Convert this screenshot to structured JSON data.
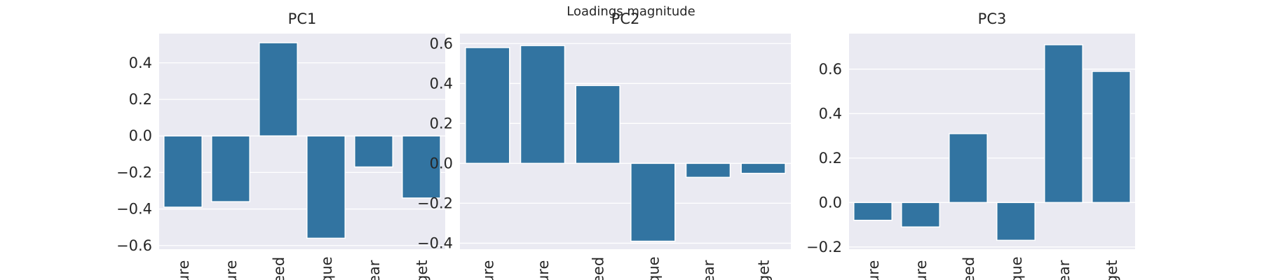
{
  "figure": {
    "suptitle": "Loadings magnitude"
  },
  "chart_data": [
    {
      "type": "bar",
      "title": "PC1",
      "categories": [
        "ure",
        "ure",
        "eed",
        "que",
        "ear",
        "get"
      ],
      "values": [
        -0.39,
        -0.36,
        0.51,
        -0.56,
        -0.17,
        -0.34
      ],
      "ylim": [
        -0.62,
        0.56
      ],
      "yticks": [
        -0.6,
        -0.4,
        -0.2,
        0.0,
        0.2,
        0.4
      ],
      "ytick_labels": [
        "−0.6",
        "−0.4",
        "−0.2",
        "0.0",
        "0.2",
        "0.4"
      ],
      "grid": true,
      "bar_color": "#3274a1"
    },
    {
      "type": "bar",
      "title": "PC2",
      "categories": [
        "ure",
        "ure",
        "eed",
        "que",
        "ear",
        "get"
      ],
      "values": [
        0.58,
        0.59,
        0.39,
        -0.39,
        -0.07,
        -0.05
      ],
      "ylim": [
        -0.43,
        0.65
      ],
      "yticks": [
        -0.4,
        -0.2,
        0.0,
        0.2,
        0.4,
        0.6
      ],
      "ytick_labels": [
        "−0.4",
        "−0.2",
        "0.0",
        "0.2",
        "0.4",
        "0.6"
      ],
      "grid": true,
      "bar_color": "#3274a1"
    },
    {
      "type": "bar",
      "title": "PC3",
      "categories": [
        "ure",
        "ure",
        "eed",
        "que",
        "ear",
        "get"
      ],
      "values": [
        -0.08,
        -0.11,
        0.31,
        -0.17,
        0.71,
        0.59
      ],
      "ylim": [
        -0.21,
        0.76
      ],
      "yticks": [
        -0.2,
        0.0,
        0.2,
        0.4,
        0.6
      ],
      "ytick_labels": [
        "−0.2",
        "0.0",
        "0.2",
        "0.4",
        "0.6"
      ],
      "grid": true,
      "bar_color": "#3274a1"
    }
  ]
}
